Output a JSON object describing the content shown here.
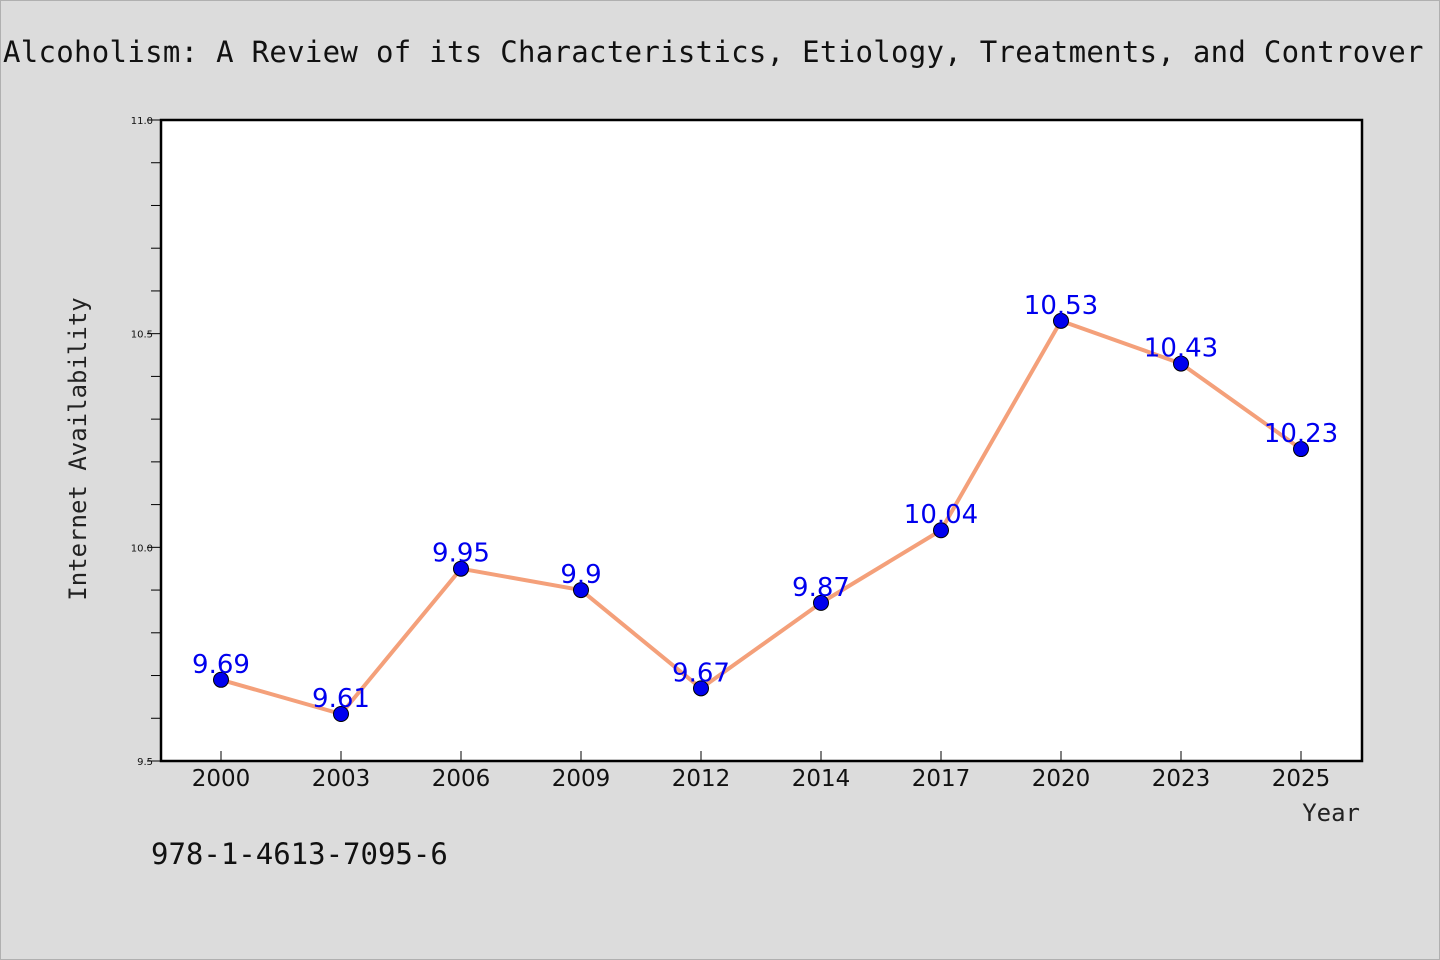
{
  "title": "Alcoholism: A Review of its Characteristics, Etiology, Treatments, and Controver",
  "footnote": "978-1-4613-7095-6",
  "chart_data": {
    "type": "line",
    "categories": [
      "2000",
      "2003",
      "2006",
      "2009",
      "2012",
      "2014",
      "2017",
      "2020",
      "2023",
      "2025"
    ],
    "series": [
      {
        "values": [
          9.69,
          9.61,
          9.95,
          9.9,
          9.67,
          9.87,
          10.04,
          10.53,
          10.43,
          10.23
        ]
      }
    ],
    "xlabel": "Year",
    "ylabel": "Internet Availability",
    "ylim": [
      9.5,
      11.0
    ],
    "yticks": [
      "9.5",
      "10.0",
      "10.5",
      "11.0"
    ],
    "grid": false,
    "colors": {
      "line": "#f4a07a",
      "marker": "#0000ee",
      "data_label": "#0000ee",
      "background": "#dcdcdc",
      "plot_background": "#ffffff"
    }
  }
}
